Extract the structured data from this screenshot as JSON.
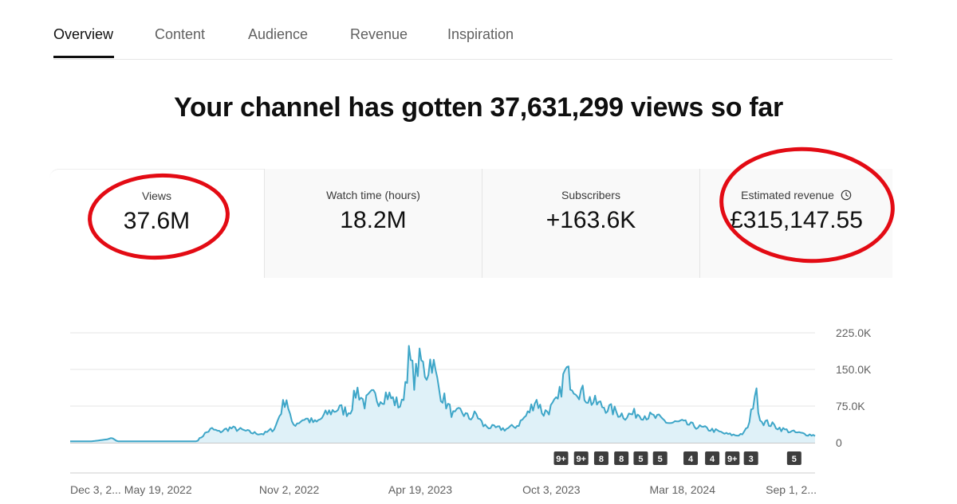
{
  "tabs": [
    {
      "label": "Overview",
      "active": true
    },
    {
      "label": "Content",
      "active": false
    },
    {
      "label": "Audience",
      "active": false
    },
    {
      "label": "Revenue",
      "active": false
    },
    {
      "label": "Inspiration",
      "active": false
    }
  ],
  "headline": "Your channel has gotten 37,631,299 views so far",
  "metrics": [
    {
      "label": "Views",
      "value": "37.6M",
      "selected": true
    },
    {
      "label": "Watch time (hours)",
      "value": "18.2M",
      "selected": false
    },
    {
      "label": "Subscribers",
      "value": "+163.6K",
      "selected": false
    },
    {
      "label": "Estimated revenue",
      "value": "£315,147.55",
      "selected": false,
      "icon": "clock-icon"
    }
  ],
  "annotation_color": "#e30b14",
  "chart_data": {
    "type": "area",
    "series_color": "#3ea6c8",
    "ylim": [
      0,
      225000
    ],
    "y_tick_labels": [
      "225.0K",
      "150.0K",
      "75.0K",
      "0"
    ],
    "y_tick_values": [
      225000,
      150000,
      75000,
      0
    ],
    "x_tick_labels": [
      "Dec 3, 2...",
      "May 19, 2022",
      "Nov 2, 2022",
      "Apr 19, 2023",
      "Oct 3, 2023",
      "Mar 18, 2024",
      "Sep 1, 2..."
    ],
    "x_tick_positions": [
      0,
      0.118,
      0.294,
      0.47,
      0.646,
      0.822,
      1.0
    ],
    "anchors": [
      [
        0.0,
        3000
      ],
      [
        0.03,
        3000
      ],
      [
        0.05,
        7000
      ],
      [
        0.056,
        10000
      ],
      [
        0.063,
        3000
      ],
      [
        0.17,
        3000
      ],
      [
        0.175,
        10000
      ],
      [
        0.182,
        20000
      ],
      [
        0.19,
        28000
      ],
      [
        0.2,
        22000
      ],
      [
        0.215,
        30000
      ],
      [
        0.23,
        26000
      ],
      [
        0.245,
        20000
      ],
      [
        0.26,
        18000
      ],
      [
        0.275,
        30000
      ],
      [
        0.29,
        95000
      ],
      [
        0.298,
        35000
      ],
      [
        0.315,
        50000
      ],
      [
        0.33,
        40000
      ],
      [
        0.345,
        60000
      ],
      [
        0.36,
        70000
      ],
      [
        0.375,
        62000
      ],
      [
        0.385,
        110000
      ],
      [
        0.395,
        80000
      ],
      [
        0.405,
        95000
      ],
      [
        0.415,
        90000
      ],
      [
        0.425,
        100000
      ],
      [
        0.435,
        85000
      ],
      [
        0.445,
        75000
      ],
      [
        0.455,
        175000
      ],
      [
        0.462,
        130000
      ],
      [
        0.47,
        170000
      ],
      [
        0.478,
        140000
      ],
      [
        0.485,
        175000
      ],
      [
        0.495,
        110000
      ],
      [
        0.505,
        80000
      ],
      [
        0.515,
        55000
      ],
      [
        0.525,
        65000
      ],
      [
        0.535,
        50000
      ],
      [
        0.545,
        58000
      ],
      [
        0.555,
        35000
      ],
      [
        0.57,
        30000
      ],
      [
        0.585,
        28000
      ],
      [
        0.6,
        35000
      ],
      [
        0.615,
        60000
      ],
      [
        0.625,
        90000
      ],
      [
        0.635,
        60000
      ],
      [
        0.645,
        70000
      ],
      [
        0.655,
        85000
      ],
      [
        0.665,
        148000
      ],
      [
        0.675,
        120000
      ],
      [
        0.685,
        105000
      ],
      [
        0.7,
        85000
      ],
      [
        0.715,
        75000
      ],
      [
        0.73,
        65000
      ],
      [
        0.745,
        55000
      ],
      [
        0.76,
        60000
      ],
      [
        0.775,
        55000
      ],
      [
        0.79,
        50000
      ],
      [
        0.805,
        40000
      ],
      [
        0.82,
        42000
      ],
      [
        0.835,
        35000
      ],
      [
        0.85,
        30000
      ],
      [
        0.865,
        25000
      ],
      [
        0.88,
        18000
      ],
      [
        0.895,
        15000
      ],
      [
        0.905,
        20000
      ],
      [
        0.912,
        40000
      ],
      [
        0.92,
        110000
      ],
      [
        0.927,
        45000
      ],
      [
        0.94,
        38000
      ],
      [
        0.955,
        28000
      ],
      [
        0.97,
        22000
      ],
      [
        0.985,
        18000
      ],
      [
        1.0,
        15000
      ]
    ]
  },
  "badges": [
    {
      "label": "9+",
      "pos": 0.659
    },
    {
      "label": "9+",
      "pos": 0.686
    },
    {
      "label": "8",
      "pos": 0.713
    },
    {
      "label": "8",
      "pos": 0.74
    },
    {
      "label": "5",
      "pos": 0.766
    },
    {
      "label": "5",
      "pos": 0.792
    },
    {
      "label": "4",
      "pos": 0.833
    },
    {
      "label": "4",
      "pos": 0.862
    },
    {
      "label": "9+",
      "pos": 0.889
    },
    {
      "label": "3",
      "pos": 0.914
    },
    {
      "label": "5",
      "pos": 0.972
    }
  ]
}
